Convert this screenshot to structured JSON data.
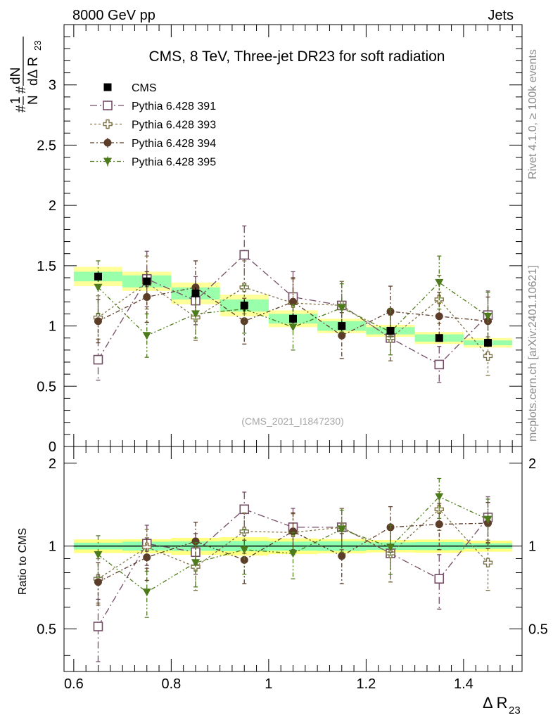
{
  "header": {
    "left": "8000 GeV pp",
    "right": "Jets"
  },
  "side_labels": {
    "rivet": "Rivet 4.1.0, ≥ 100k events",
    "mcplots": "mcplots.cern.ch [arXiv:2401.10621]"
  },
  "chart_data": {
    "type": "scatter",
    "title": "CMS, 8 TeV, Three-jet DR23 for soft radiation",
    "analysis_id": "(CMS_2021_I1847230)",
    "xlabel": "Δ R23",
    "xlabel_main": "Δ R",
    "xlabel_sub": "23",
    "ylabel": "#1/N #dN/dΔ R23",
    "ratio_ylabel": "Ratio to CMS",
    "xlim": [
      0.58,
      1.52
    ],
    "ylim": [
      0,
      3.5
    ],
    "ratio_ylim": [
      0.35,
      2.3
    ],
    "x_ticks": [
      0.6,
      0.8,
      1.0,
      1.2,
      1.4
    ],
    "x_tick_labels": [
      "0.6",
      "0.8",
      "1",
      "1.2",
      "1.4"
    ],
    "y_ticks": [
      0,
      0.5,
      1,
      1.5,
      2,
      2.5,
      3
    ],
    "y_tick_labels": [
      "0",
      "0.5",
      "1",
      "1.5",
      "2",
      "2.5",
      "3"
    ],
    "ratio_y_ticks": [
      0.5,
      1,
      2
    ],
    "ratio_y_tick_labels": [
      "0.5",
      "1",
      "2"
    ],
    "x": [
      0.65,
      0.75,
      0.85,
      0.95,
      1.05,
      1.15,
      1.25,
      1.35,
      1.45
    ],
    "data": {
      "name": "CMS",
      "color": "#000000",
      "marker": "filled-square",
      "values": [
        1.41,
        1.37,
        1.27,
        1.17,
        1.06,
        1.0,
        0.96,
        0.9,
        0.86
      ],
      "band_inner": [
        0.04,
        0.05,
        0.05,
        0.05,
        0.04,
        0.04,
        0.03,
        0.03,
        0.02
      ],
      "band_outer": [
        0.08,
        0.08,
        0.09,
        0.09,
        0.07,
        0.06,
        0.05,
        0.05,
        0.04
      ]
    },
    "series": [
      {
        "name": "Pythia 6.428 391",
        "color": "#734d66",
        "marker": "open-square",
        "dash": "10,4,2,4",
        "values": [
          0.72,
          1.39,
          1.21,
          1.59,
          1.24,
          1.17,
          0.9,
          0.68,
          1.09
        ],
        "errors": [
          0.17,
          0.23,
          0.2,
          0.24,
          0.21,
          0.2,
          0.19,
          0.15,
          0.2
        ],
        "ratio": [
          0.51,
          1.02,
          0.95,
          1.36,
          1.17,
          1.17,
          0.94,
          0.76,
          1.27
        ],
        "ratio_errors": [
          0.13,
          0.17,
          0.16,
          0.21,
          0.2,
          0.2,
          0.2,
          0.17,
          0.24
        ]
      },
      {
        "name": "Pythia 6.428 393",
        "color": "#807347",
        "marker": "open-plus",
        "dash": "3,3",
        "values": [
          1.07,
          1.36,
          1.07,
          1.32,
          1.19,
          1.17,
          0.9,
          1.22,
          0.75
        ],
        "errors": [
          0.18,
          0.22,
          0.19,
          0.22,
          0.2,
          0.2,
          0.19,
          0.2,
          0.16
        ],
        "ratio": [
          0.76,
          0.99,
          0.84,
          1.13,
          1.12,
          1.17,
          0.94,
          1.36,
          0.87
        ],
        "ratio_errors": [
          0.14,
          0.16,
          0.15,
          0.19,
          0.19,
          0.2,
          0.2,
          0.22,
          0.18
        ]
      },
      {
        "name": "Pythia 6.428 394",
        "color": "#5c3d29",
        "marker": "filled-circle",
        "dash": "6,3,2,3",
        "values": [
          1.04,
          1.24,
          1.32,
          1.04,
          1.2,
          0.92,
          1.12,
          1.08,
          1.04
        ],
        "errors": [
          0.18,
          0.21,
          0.22,
          0.19,
          0.2,
          0.19,
          0.21,
          0.2,
          0.2
        ],
        "ratio": [
          0.74,
          0.91,
          1.04,
          0.89,
          1.13,
          0.92,
          1.17,
          1.2,
          1.21
        ],
        "ratio_errors": [
          0.13,
          0.16,
          0.18,
          0.16,
          0.19,
          0.19,
          0.22,
          0.23,
          0.23
        ]
      },
      {
        "name": "Pythia 6.428 395",
        "color": "#4d7a1a",
        "marker": "filled-triangle-down",
        "dash": "6,3,2,3,2,3",
        "values": [
          1.32,
          0.92,
          1.1,
          1.14,
          0.99,
          1.15,
          0.95,
          1.36,
          1.08
        ],
        "errors": [
          0.22,
          0.18,
          0.2,
          0.2,
          0.19,
          0.2,
          0.19,
          0.22,
          0.2
        ],
        "ratio": [
          0.93,
          0.68,
          0.87,
          0.97,
          0.94,
          1.15,
          0.99,
          1.51,
          1.25
        ],
        "ratio_errors": [
          0.16,
          0.13,
          0.16,
          0.18,
          0.18,
          0.2,
          0.2,
          0.25,
          0.23
        ]
      }
    ]
  }
}
